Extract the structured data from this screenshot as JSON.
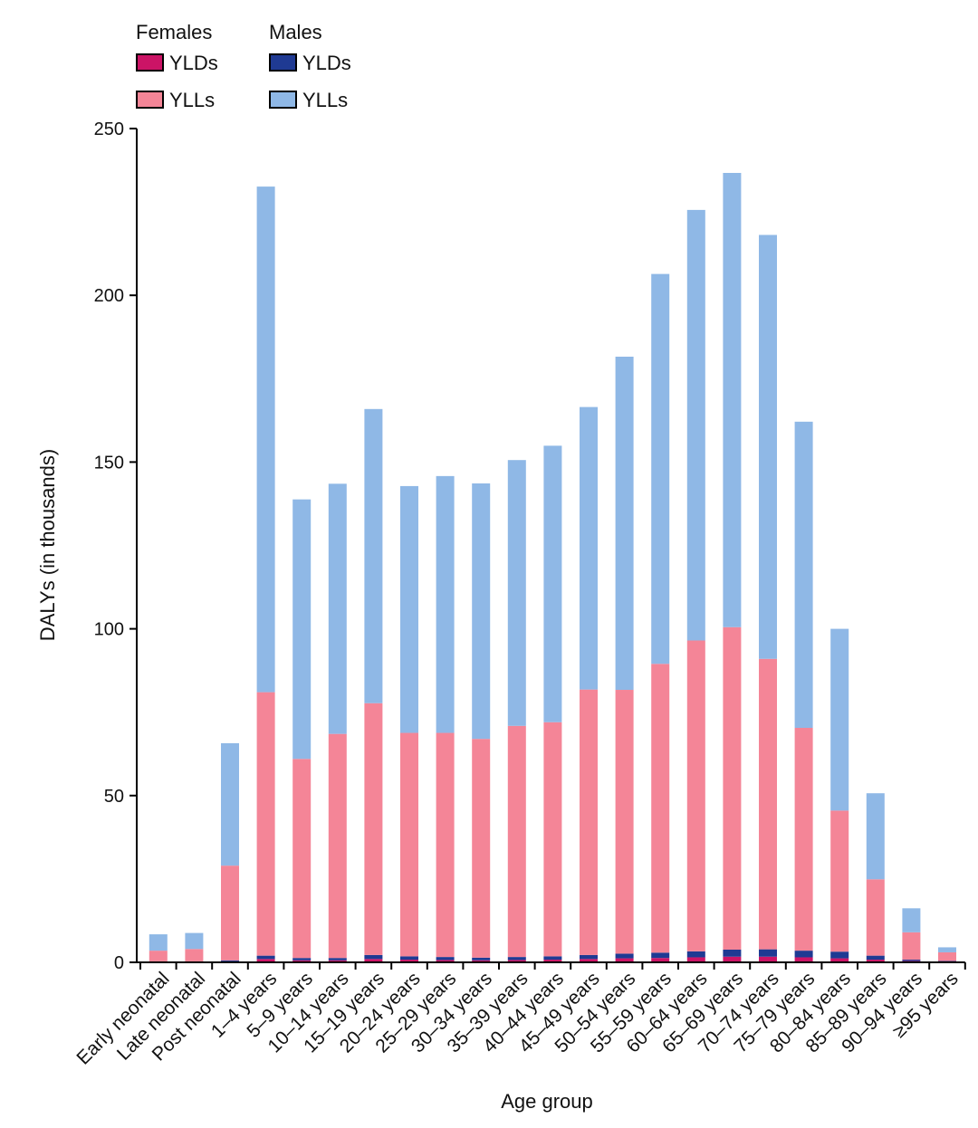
{
  "chart_data": {
    "type": "bar",
    "stacked": true,
    "xlabel": "Age group",
    "ylabel": "DALYs (in thousands)",
    "ylim": [
      0,
      250
    ],
    "yticks": [
      0,
      50,
      100,
      150,
      200,
      250
    ],
    "grid": false,
    "legend": {
      "placement": "top-left",
      "groups": [
        {
          "title": "Females",
          "entries": [
            {
              "label": "YLDs",
              "series": "Females YLDs"
            },
            {
              "label": "YLLs",
              "series": "Females YLLs"
            }
          ]
        },
        {
          "title": "Males",
          "entries": [
            {
              "label": "YLDs",
              "series": "Males YLDs"
            },
            {
              "label": "YLLs",
              "series": "Males YLLs"
            }
          ]
        }
      ]
    },
    "categories": [
      "Early neonatal",
      "Late neonatal",
      "Post neonatal",
      "1–4 years",
      "5–9 years",
      "10–14 years",
      "15–19 years",
      "20–24 years",
      "25–29 years",
      "30–34 years",
      "35–39 years",
      "40–44 years",
      "45–49 years",
      "50–54 years",
      "55–59 years",
      "60–64 years",
      "65–69 years",
      "70–74 years",
      "75–79 years",
      "80–84 years",
      "85–89 years",
      "90–94 years",
      "≥95 years"
    ],
    "series": [
      {
        "name": "Females YLDs",
        "color": "#cc1466",
        "values": [
          0.1,
          0.1,
          0.3,
          1.0,
          0.6,
          0.6,
          1.0,
          0.8,
          0.7,
          0.6,
          0.7,
          0.8,
          1.0,
          1.2,
          1.3,
          1.5,
          1.7,
          1.7,
          1.5,
          1.2,
          0.8,
          0.4,
          0.2
        ]
      },
      {
        "name": "Males YLDs",
        "color": "#1f3a93",
        "values": [
          0.1,
          0.1,
          0.3,
          1.0,
          0.7,
          0.7,
          1.2,
          1.0,
          0.9,
          0.8,
          0.9,
          1.0,
          1.2,
          1.4,
          1.6,
          1.8,
          2.1,
          2.2,
          2.0,
          2.0,
          1.2,
          0.4,
          0.2
        ]
      },
      {
        "name": "Females YLLs",
        "color": "#f48597",
        "values": [
          3.3,
          3.8,
          28.4,
          79.0,
          59.7,
          67.2,
          75.5,
          67.0,
          67.2,
          65.6,
          69.3,
          70.2,
          79.6,
          79.1,
          86.6,
          93.2,
          96.7,
          87.1,
          66.8,
          42.3,
          22.9,
          8.2,
          2.6
        ]
      },
      {
        "name": "Males YLLs",
        "color": "#8fb8e6",
        "values": [
          4.9,
          4.8,
          36.7,
          151.6,
          77.8,
          75.0,
          88.2,
          74.0,
          77.0,
          76.6,
          79.7,
          82.9,
          84.7,
          99.9,
          116.9,
          129.1,
          136.2,
          127.1,
          91.8,
          54.5,
          25.8,
          7.2,
          1.5
        ]
      }
    ]
  }
}
